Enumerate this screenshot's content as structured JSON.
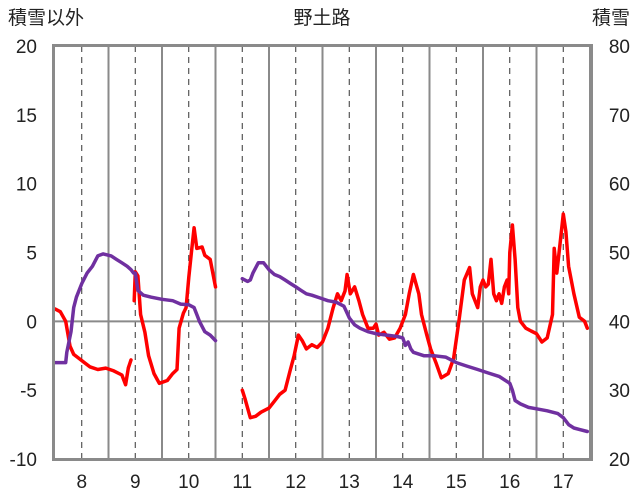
{
  "chart_data": {
    "type": "line",
    "title": "野土路",
    "left_axis": {
      "label": "積雪以外",
      "ylim": [
        -10,
        20
      ],
      "ticks": [
        -10,
        -5,
        0,
        5,
        10,
        15,
        20
      ]
    },
    "right_axis": {
      "label": "積雪",
      "ylim": [
        20,
        80
      ],
      "ticks": [
        20,
        30,
        40,
        50,
        60,
        70,
        80
      ]
    },
    "xlim": [
      7.5,
      17.5
    ],
    "x_ticks": [
      8,
      9,
      10,
      11,
      12,
      13,
      14,
      15,
      16,
      17
    ],
    "grid": {
      "vertical_dashed_at": [
        8,
        9,
        10,
        11,
        12,
        13,
        14,
        15,
        16,
        17
      ],
      "vertical_solid_at": [
        8.5,
        9.5,
        10.5,
        11.5,
        12.5,
        13.5,
        14.5,
        15.5,
        16.5,
        17.5
      ],
      "horizontal_line_at": 0
    },
    "series": [
      {
        "axis": "left",
        "color": "#ff0000",
        "segments": [
          [
            [
              7.5,
              0.9
            ],
            [
              7.6,
              0.7
            ],
            [
              7.7,
              0
            ],
            [
              7.78,
              -1.8
            ],
            [
              7.85,
              -2.4
            ],
            [
              7.95,
              -2.7
            ],
            [
              8.05,
              -3.0
            ],
            [
              8.15,
              -3.3
            ],
            [
              8.3,
              -3.5
            ],
            [
              8.45,
              -3.4
            ],
            [
              8.6,
              -3.6
            ],
            [
              8.75,
              -3.9
            ],
            [
              8.82,
              -4.6
            ],
            [
              8.87,
              -3.4
            ],
            [
              8.92,
              -2.8
            ]
          ],
          [
            [
              8.98,
              1.5
            ],
            [
              9.0,
              3.6
            ],
            [
              9.05,
              3.3
            ],
            [
              9.1,
              0.5
            ],
            [
              9.18,
              -0.8
            ],
            [
              9.25,
              -2.5
            ],
            [
              9.35,
              -3.8
            ],
            [
              9.45,
              -4.5
            ],
            [
              9.6,
              -4.3
            ],
            [
              9.7,
              -3.8
            ],
            [
              9.78,
              -3.5
            ],
            [
              9.82,
              -0.5
            ],
            [
              9.9,
              0.6
            ],
            [
              9.95,
              1.0
            ],
            [
              10.0,
              3.2
            ],
            [
              10.05,
              5.0
            ],
            [
              10.1,
              6.8
            ],
            [
              10.15,
              5.3
            ],
            [
              10.25,
              5.4
            ],
            [
              10.3,
              4.8
            ],
            [
              10.4,
              4.5
            ],
            [
              10.5,
              2.5
            ]
          ],
          [
            [
              11.0,
              -5.0
            ],
            [
              11.05,
              -5.6
            ],
            [
              11.15,
              -7.0
            ],
            [
              11.25,
              -6.9
            ],
            [
              11.35,
              -6.6
            ],
            [
              11.5,
              -6.3
            ],
            [
              11.6,
              -5.8
            ],
            [
              11.7,
              -5.3
            ],
            [
              11.8,
              -5.0
            ],
            [
              11.9,
              -3.5
            ],
            [
              11.97,
              -2.5
            ],
            [
              12.05,
              -1.0
            ],
            [
              12.12,
              -1.4
            ],
            [
              12.2,
              -2.0
            ],
            [
              12.3,
              -1.7
            ],
            [
              12.4,
              -1.9
            ],
            [
              12.5,
              -1.5
            ],
            [
              12.6,
              -0.5
            ],
            [
              12.7,
              1.0
            ],
            [
              12.78,
              2.0
            ],
            [
              12.85,
              1.5
            ],
            [
              12.92,
              2.2
            ],
            [
              12.96,
              3.4
            ],
            [
              13.02,
              2.0
            ],
            [
              13.1,
              2.5
            ],
            [
              13.18,
              1.5
            ],
            [
              13.25,
              0.5
            ],
            [
              13.35,
              -0.5
            ],
            [
              13.45,
              -0.5
            ],
            [
              13.5,
              -0.2
            ],
            [
              13.55,
              -1.0
            ],
            [
              13.65,
              -0.8
            ],
            [
              13.75,
              -1.3
            ],
            [
              13.85,
              -1.2
            ],
            [
              13.95,
              -0.5
            ],
            [
              14.05,
              0.5
            ],
            [
              14.12,
              2.0
            ],
            [
              14.2,
              3.4
            ],
            [
              14.3,
              2.0
            ],
            [
              14.35,
              0.5
            ],
            [
              14.45,
              -1.0
            ],
            [
              14.52,
              -2.0
            ],
            [
              14.62,
              -3.0
            ],
            [
              14.72,
              -4.1
            ],
            [
              14.85,
              -3.8
            ],
            [
              14.95,
              -2.7
            ],
            [
              15.05,
              0
            ],
            [
              15.15,
              3.0
            ],
            [
              15.25,
              3.9
            ],
            [
              15.3,
              2.0
            ],
            [
              15.35,
              1.5
            ],
            [
              15.4,
              1.0
            ],
            [
              15.45,
              2.5
            ],
            [
              15.5,
              3.0
            ],
            [
              15.55,
              2.5
            ],
            [
              15.6,
              2.7
            ],
            [
              15.65,
              4.5
            ],
            [
              15.7,
              2.0
            ],
            [
              15.75,
              1.5
            ],
            [
              15.8,
              2.0
            ],
            [
              15.85,
              1.3
            ],
            [
              15.9,
              2.5
            ],
            [
              15.95,
              3.0
            ],
            [
              15.98,
              2.0
            ],
            [
              16.0,
              5.0
            ],
            [
              16.05,
              7.0
            ],
            [
              16.1,
              4.5
            ],
            [
              16.15,
              1.0
            ],
            [
              16.2,
              0
            ],
            [
              16.3,
              -0.5
            ],
            [
              16.4,
              -0.7
            ],
            [
              16.5,
              -0.9
            ],
            [
              16.6,
              -1.5
            ],
            [
              16.7,
              -1.2
            ],
            [
              16.8,
              0.5
            ],
            [
              16.83,
              5.3
            ],
            [
              16.88,
              3.5
            ],
            [
              16.95,
              6.0
            ],
            [
              17.0,
              7.8
            ],
            [
              17.05,
              6.5
            ],
            [
              17.1,
              4.0
            ],
            [
              17.2,
              2.0
            ],
            [
              17.3,
              0.3
            ],
            [
              17.4,
              0.0
            ],
            [
              17.45,
              -0.5
            ]
          ]
        ]
      },
      {
        "axis": "right",
        "color": "#7030a0",
        "segments": [
          [
            [
              7.5,
              34.0
            ],
            [
              7.6,
              34.0
            ],
            [
              7.7,
              34.0
            ],
            [
              7.72,
              35.5
            ],
            [
              7.8,
              38.5
            ],
            [
              7.85,
              42.0
            ],
            [
              7.9,
              43.5
            ],
            [
              8.0,
              45.5
            ],
            [
              8.1,
              47.0
            ],
            [
              8.2,
              48.0
            ],
            [
              8.3,
              49.5
            ],
            [
              8.4,
              49.8
            ],
            [
              8.55,
              49.5
            ],
            [
              8.65,
              49.0
            ],
            [
              8.75,
              48.5
            ],
            [
              8.85,
              48.0
            ],
            [
              8.92,
              47.5
            ],
            [
              8.97,
              47.0
            ],
            [
              9.0,
              47.0
            ],
            [
              9.05,
              44.5
            ],
            [
              9.15,
              43.8
            ],
            [
              9.3,
              43.5
            ],
            [
              9.5,
              43.2
            ],
            [
              9.7,
              43.0
            ],
            [
              9.85,
              42.5
            ],
            [
              10.0,
              42.4
            ],
            [
              10.1,
              42.0
            ],
            [
              10.15,
              41.0
            ],
            [
              10.2,
              40.0
            ],
            [
              10.3,
              38.5
            ],
            [
              10.4,
              38.0
            ],
            [
              10.5,
              37.2
            ]
          ],
          [
            [
              11.0,
              46.2
            ],
            [
              11.1,
              45.8
            ],
            [
              11.15,
              46.0
            ],
            [
              11.2,
              47.0
            ],
            [
              11.3,
              48.5
            ],
            [
              11.4,
              48.5
            ],
            [
              11.5,
              47.5
            ],
            [
              11.6,
              46.8
            ],
            [
              11.7,
              46.5
            ],
            [
              11.8,
              46.0
            ],
            [
              11.9,
              45.5
            ],
            [
              12.0,
              45.0
            ],
            [
              12.1,
              44.5
            ],
            [
              12.2,
              44.0
            ],
            [
              12.3,
              43.8
            ],
            [
              12.45,
              43.4
            ],
            [
              12.6,
              43.0
            ],
            [
              12.75,
              42.8
            ],
            [
              12.9,
              42.2
            ],
            [
              13.0,
              40.5
            ],
            [
              13.1,
              39.5
            ],
            [
              13.2,
              39.0
            ],
            [
              13.35,
              38.5
            ],
            [
              13.5,
              38.2
            ],
            [
              13.7,
              38.0
            ],
            [
              13.9,
              37.8
            ],
            [
              14.0,
              37.6
            ],
            [
              14.05,
              36.5
            ],
            [
              14.1,
              37.0
            ],
            [
              14.15,
              36.0
            ],
            [
              14.2,
              35.5
            ],
            [
              14.4,
              35.0
            ],
            [
              14.6,
              35.0
            ],
            [
              14.8,
              34.8
            ],
            [
              15.0,
              34.0
            ],
            [
              15.2,
              33.5
            ],
            [
              15.4,
              33.0
            ],
            [
              15.6,
              32.5
            ],
            [
              15.8,
              32.0
            ],
            [
              16.0,
              31.0
            ],
            [
              16.05,
              30.0
            ],
            [
              16.1,
              28.5
            ],
            [
              16.2,
              28.0
            ],
            [
              16.35,
              27.5
            ],
            [
              16.5,
              27.3
            ],
            [
              16.7,
              27.0
            ],
            [
              16.9,
              26.6
            ],
            [
              17.0,
              26.0
            ],
            [
              17.1,
              25.0
            ],
            [
              17.2,
              24.5
            ],
            [
              17.3,
              24.3
            ],
            [
              17.45,
              24.0
            ]
          ]
        ]
      }
    ]
  }
}
